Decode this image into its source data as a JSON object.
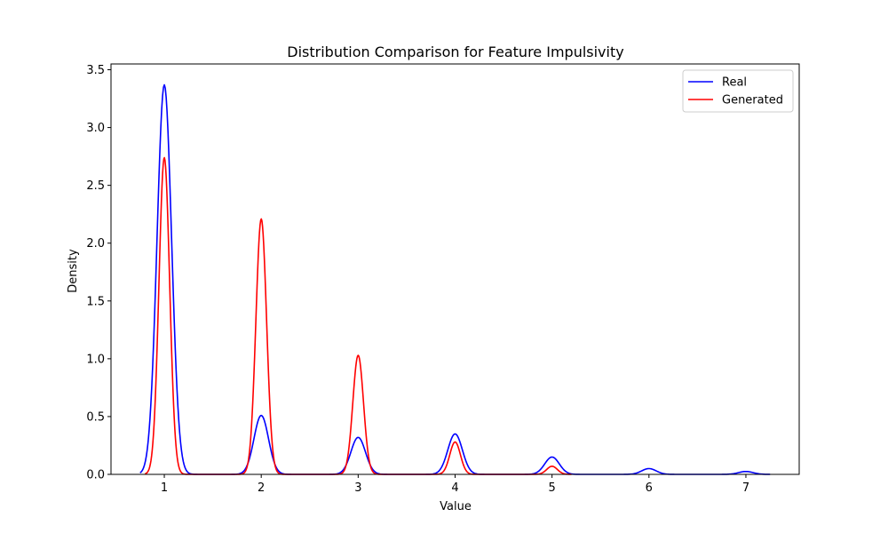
{
  "chart_data": {
    "type": "line",
    "title": "Distribution Comparison for Feature Impulsivity",
    "xlabel": "Value",
    "ylabel": "Density",
    "xlim": [
      0.45,
      7.55
    ],
    "ylim": [
      0,
      3.55
    ],
    "xticks": [
      1,
      2,
      3,
      4,
      5,
      6,
      7
    ],
    "yticks": [
      0.0,
      0.5,
      1.0,
      1.5,
      2.0,
      2.5,
      3.0,
      3.5
    ],
    "ytick_labels": [
      "0.0",
      "0.5",
      "1.0",
      "1.5",
      "2.0",
      "2.5",
      "3.0",
      "3.5"
    ],
    "grid": false,
    "legend_position": "top-right",
    "series": [
      {
        "name": "Real",
        "color": "#0000ff",
        "x_range": [
          0.75,
          7.25
        ],
        "peaks": [
          {
            "center": 1,
            "height": 3.37,
            "sigma": 0.075
          },
          {
            "center": 2,
            "height": 0.51,
            "sigma": 0.075
          },
          {
            "center": 3,
            "height": 0.32,
            "sigma": 0.075
          },
          {
            "center": 4,
            "height": 0.35,
            "sigma": 0.075
          },
          {
            "center": 5,
            "height": 0.15,
            "sigma": 0.075
          },
          {
            "center": 6,
            "height": 0.05,
            "sigma": 0.075
          },
          {
            "center": 7,
            "height": 0.025,
            "sigma": 0.075
          }
        ]
      },
      {
        "name": "Generated",
        "color": "#ff0000",
        "x_range": [
          0.8,
          5.2
        ],
        "peaks": [
          {
            "center": 1,
            "height": 2.74,
            "sigma": 0.055
          },
          {
            "center": 2,
            "height": 2.21,
            "sigma": 0.055
          },
          {
            "center": 3,
            "height": 1.03,
            "sigma": 0.055
          },
          {
            "center": 4,
            "height": 0.28,
            "sigma": 0.055
          },
          {
            "center": 5,
            "height": 0.07,
            "sigma": 0.055
          }
        ]
      }
    ]
  }
}
